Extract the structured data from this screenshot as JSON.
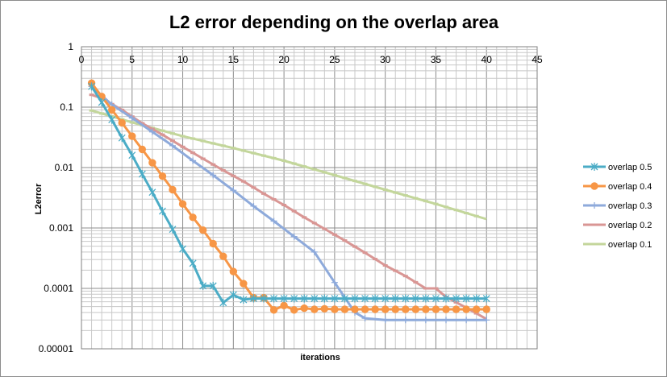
{
  "chart_data": {
    "type": "line",
    "title": "L2 error depending on the overlap area",
    "xlabel": "iterations",
    "ylabel": "L2error",
    "xlim": [
      0,
      45
    ],
    "ylim": [
      1e-05,
      1
    ],
    "yscale": "log",
    "xticks": [
      "0",
      "5",
      "10",
      "15",
      "20",
      "25",
      "30",
      "35",
      "40",
      "45"
    ],
    "yticks": [
      "1",
      "0.1",
      "0.01",
      "0.001",
      "0.0001",
      "0.00001"
    ],
    "x_axis_position": "top",
    "legend_position": "right",
    "series": [
      {
        "name": "overlap 0.5",
        "color": "#4bacc6",
        "marker": "star",
        "x": [
          1,
          2,
          3,
          4,
          5,
          6,
          7,
          8,
          9,
          10,
          11,
          12,
          13,
          14,
          15,
          16,
          17,
          18,
          19,
          20,
          21,
          22,
          23,
          24,
          25,
          26,
          27,
          28,
          29,
          30,
          31,
          32,
          33,
          34,
          35,
          36,
          37,
          38,
          39,
          40
        ],
        "y": [
          0.22,
          0.12,
          0.062,
          0.031,
          0.016,
          0.0078,
          0.0039,
          0.0019,
          0.00095,
          0.00045,
          0.00026,
          0.00011,
          0.00011,
          5.8e-05,
          7.8e-05,
          6.5e-05,
          6.8e-05,
          6.8e-05,
          6.8e-05,
          6.8e-05,
          6.8e-05,
          6.8e-05,
          6.8e-05,
          6.8e-05,
          6.8e-05,
          6.8e-05,
          6.8e-05,
          6.8e-05,
          6.8e-05,
          6.8e-05,
          6.8e-05,
          6.8e-05,
          6.8e-05,
          6.8e-05,
          6.8e-05,
          6.8e-05,
          6.8e-05,
          6.8e-05,
          6.8e-05,
          6.8e-05
        ]
      },
      {
        "name": "overlap 0.4",
        "color": "#f79646",
        "marker": "circle",
        "x": [
          1,
          2,
          3,
          4,
          5,
          6,
          7,
          8,
          9,
          10,
          11,
          12,
          13,
          14,
          15,
          16,
          17,
          18,
          19,
          20,
          21,
          22,
          23,
          24,
          25,
          26,
          27,
          28,
          29,
          30,
          31,
          32,
          33,
          34,
          35,
          36,
          37,
          38,
          39,
          40
        ],
        "y": [
          0.25,
          0.15,
          0.09,
          0.055,
          0.033,
          0.02,
          0.012,
          0.0072,
          0.0043,
          0.0025,
          0.0015,
          0.00092,
          0.00055,
          0.00034,
          0.00019,
          0.00012,
          7e-05,
          7e-05,
          4.4e-05,
          5.2e-05,
          4.4e-05,
          4.7e-05,
          4.5e-05,
          4.6e-05,
          4.5e-05,
          4.5e-05,
          4.5e-05,
          4.5e-05,
          4.5e-05,
          4.5e-05,
          4.5e-05,
          4.5e-05,
          4.5e-05,
          4.5e-05,
          4.5e-05,
          4.5e-05,
          4.5e-05,
          4.5e-05,
          4.5e-05,
          4.5e-05
        ]
      },
      {
        "name": "overlap 0.3",
        "color": "#8eaadb",
        "marker": "plus",
        "x": [
          1,
          3,
          5,
          7,
          9,
          11,
          13,
          15,
          17,
          19,
          21,
          23,
          25,
          27,
          28,
          30,
          32,
          34,
          36,
          38,
          40
        ],
        "y": [
          0.22,
          0.11,
          0.066,
          0.039,
          0.023,
          0.013,
          0.0075,
          0.0042,
          0.0023,
          0.0013,
          0.00072,
          0.0004,
          0.000125,
          4e-05,
          3.2e-05,
          3e-05,
          3e-05,
          3e-05,
          3e-05,
          3e-05,
          3e-05
        ]
      },
      {
        "name": "overlap 0.2",
        "color": "#d99694",
        "marker": "dash",
        "x": [
          1,
          2,
          4,
          6,
          8,
          10,
          12,
          14,
          16,
          18,
          20,
          22,
          24,
          26,
          28,
          30,
          32,
          34,
          35,
          36,
          38,
          40
        ],
        "y": [
          0.16,
          0.14,
          0.09,
          0.054,
          0.035,
          0.022,
          0.014,
          0.009,
          0.0059,
          0.0037,
          0.0024,
          0.0015,
          0.00097,
          0.00062,
          0.00039,
          0.00024,
          0.00016,
          0.0001,
          0.0001,
          7.2e-05,
          4.8e-05,
          3.1e-05
        ]
      },
      {
        "name": "overlap 0.1",
        "color": "#c3d69b",
        "marker": "dash",
        "x": [
          1,
          5,
          10,
          15,
          20,
          25,
          30,
          35,
          40
        ],
        "y": [
          0.088,
          0.056,
          0.033,
          0.021,
          0.013,
          0.0075,
          0.0043,
          0.0025,
          0.0014
        ]
      }
    ]
  }
}
